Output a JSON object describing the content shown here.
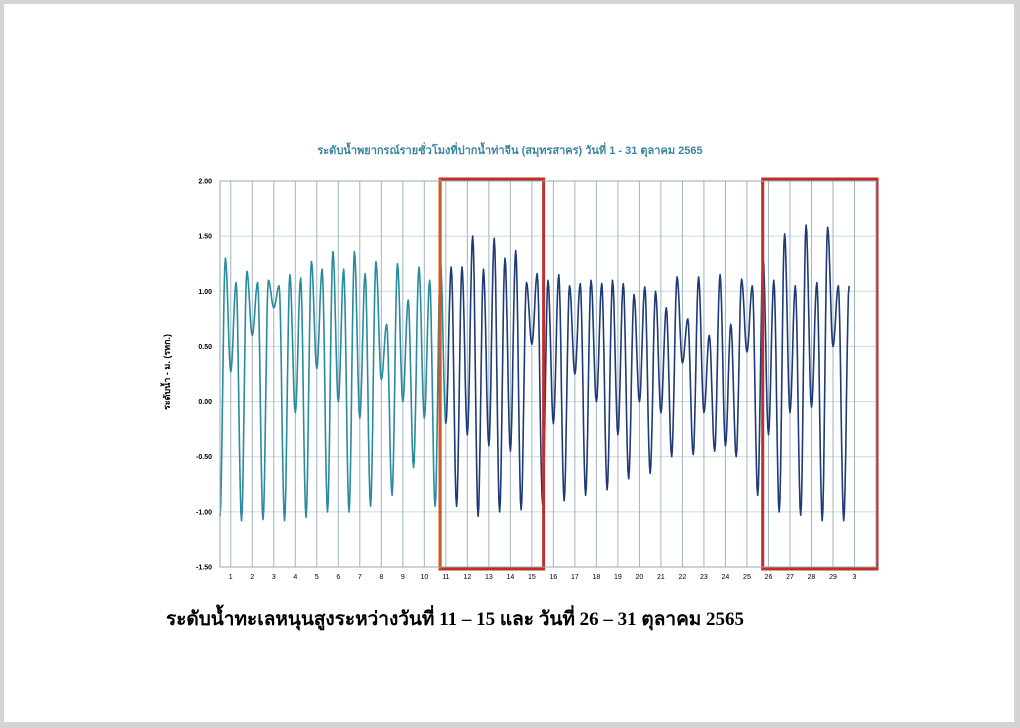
{
  "chart_data": {
    "type": "line",
    "title": "ระดับน้ำพยากรณ์รายชั่วโมงที่ปากน้ำท่าจีน (สมุทรสาคร) วันที่ 1 - 31 ตุลาคม 2565",
    "ylabel": "ระดับน้ำ - ม. (รทก.)",
    "xlabel": "",
    "ylim": [
      -1.5,
      2.0
    ],
    "xlim": [
      0.5,
      31.0
    ],
    "yticks": [
      "2.00",
      "1.50",
      "1.00",
      "0.50",
      "0.00",
      "-0.50",
      "-1.00",
      "-1.50"
    ],
    "xticks": [
      "1",
      "2",
      "3",
      "4",
      "5",
      "6",
      "7",
      "8",
      "9",
      "10",
      "11",
      "12",
      "13",
      "14",
      "15",
      "16",
      "17",
      "18",
      "19",
      "20",
      "21",
      "22",
      "23",
      "24",
      "25",
      "26",
      "27",
      "28",
      "29",
      "3"
    ],
    "grid": true,
    "highlight_ranges": [
      [
        10.5,
        15.5
      ],
      [
        25.5,
        31.0
      ]
    ],
    "colors": {
      "line_early": "#2a8a9e",
      "line_late": "#1e3a78",
      "highlight": "#c0302a",
      "highlight_early_edge": "#d05a20",
      "grid": "#c8dcdc",
      "vgrid": "#a0b4c0"
    },
    "daily": [
      {
        "day": 1,
        "highs": [
          1.3,
          1.08
        ],
        "lows": [
          -1.04,
          0.27
        ]
      },
      {
        "day": 2,
        "highs": [
          1.18,
          1.08
        ],
        "lows": [
          -1.08,
          0.6
        ]
      },
      {
        "day": 3,
        "highs": [
          1.1,
          1.05
        ],
        "lows": [
          -1.07,
          0.85
        ]
      },
      {
        "day": 4,
        "highs": [
          1.15,
          1.12
        ],
        "lows": [
          -1.08,
          -0.1
        ]
      },
      {
        "day": 5,
        "highs": [
          1.27,
          1.2
        ],
        "lows": [
          -1.05,
          0.3
        ]
      },
      {
        "day": 6,
        "highs": [
          1.36,
          1.2
        ],
        "lows": [
          -1.0,
          0.0
        ]
      },
      {
        "day": 7,
        "highs": [
          1.36,
          1.16
        ],
        "lows": [
          -1.0,
          -0.15
        ]
      },
      {
        "day": 8,
        "highs": [
          1.27,
          0.7
        ],
        "lows": [
          -0.95,
          0.2
        ]
      },
      {
        "day": 9,
        "highs": [
          1.25,
          0.92
        ],
        "lows": [
          -0.85,
          0.0
        ]
      },
      {
        "day": 10,
        "highs": [
          1.22,
          1.1
        ],
        "lows": [
          -0.6,
          -0.15
        ]
      },
      {
        "day": 11,
        "highs": [
          1.26,
          1.22
        ],
        "lows": [
          -0.95,
          -0.2
        ]
      },
      {
        "day": 12,
        "highs": [
          1.22,
          1.5
        ],
        "lows": [
          -0.95,
          -0.3
        ]
      },
      {
        "day": 13,
        "highs": [
          1.2,
          1.48
        ],
        "lows": [
          -1.04,
          -0.4
        ]
      },
      {
        "day": 14,
        "highs": [
          1.3,
          1.37
        ],
        "lows": [
          -1.0,
          -0.45
        ]
      },
      {
        "day": 15,
        "highs": [
          1.08,
          1.16
        ],
        "lows": [
          -0.98,
          0.52
        ]
      },
      {
        "day": 16,
        "highs": [
          1.1,
          1.15
        ],
        "lows": [
          -0.93,
          -0.2
        ]
      },
      {
        "day": 17,
        "highs": [
          1.05,
          1.07
        ],
        "lows": [
          -0.9,
          0.25
        ]
      },
      {
        "day": 18,
        "highs": [
          1.1,
          1.07
        ],
        "lows": [
          -0.85,
          0.0
        ]
      },
      {
        "day": 19,
        "highs": [
          1.1,
          1.07
        ],
        "lows": [
          -0.8,
          -0.3
        ]
      },
      {
        "day": 20,
        "highs": [
          0.97,
          1.04
        ],
        "lows": [
          -0.7,
          0.0
        ]
      },
      {
        "day": 21,
        "highs": [
          1.0,
          0.85
        ],
        "lows": [
          -0.65,
          -0.1
        ]
      },
      {
        "day": 22,
        "highs": [
          1.13,
          0.75
        ],
        "lows": [
          -0.5,
          0.35
        ]
      },
      {
        "day": 23,
        "highs": [
          1.13,
          0.6
        ],
        "lows": [
          -0.48,
          -0.1
        ]
      },
      {
        "day": 24,
        "highs": [
          1.15,
          0.7
        ],
        "lows": [
          -0.45,
          -0.4
        ]
      },
      {
        "day": 25,
        "highs": [
          1.11,
          1.05
        ],
        "lows": [
          -0.5,
          0.45
        ]
      },
      {
        "day": 26,
        "highs": [
          1.3,
          1.1
        ],
        "lows": [
          -0.85,
          -0.3
        ]
      },
      {
        "day": 27,
        "highs": [
          1.52,
          1.05
        ],
        "lows": [
          -1.0,
          -0.1
        ]
      },
      {
        "day": 28,
        "highs": [
          1.6,
          1.08
        ],
        "lows": [
          -1.03,
          -0.05
        ]
      },
      {
        "day": 29,
        "highs": [
          1.58,
          1.05
        ],
        "lows": [
          -1.08,
          0.5
        ]
      },
      {
        "day": 30,
        "highs": [
          1.05
        ],
        "lows": [
          -1.08
        ]
      }
    ]
  },
  "caption": "ระดับน้ำทะเลหนุนสูงระหว่างวันที่ 11 – 15 และ วันที่ 26 – 31 ตุลาคม 2565"
}
